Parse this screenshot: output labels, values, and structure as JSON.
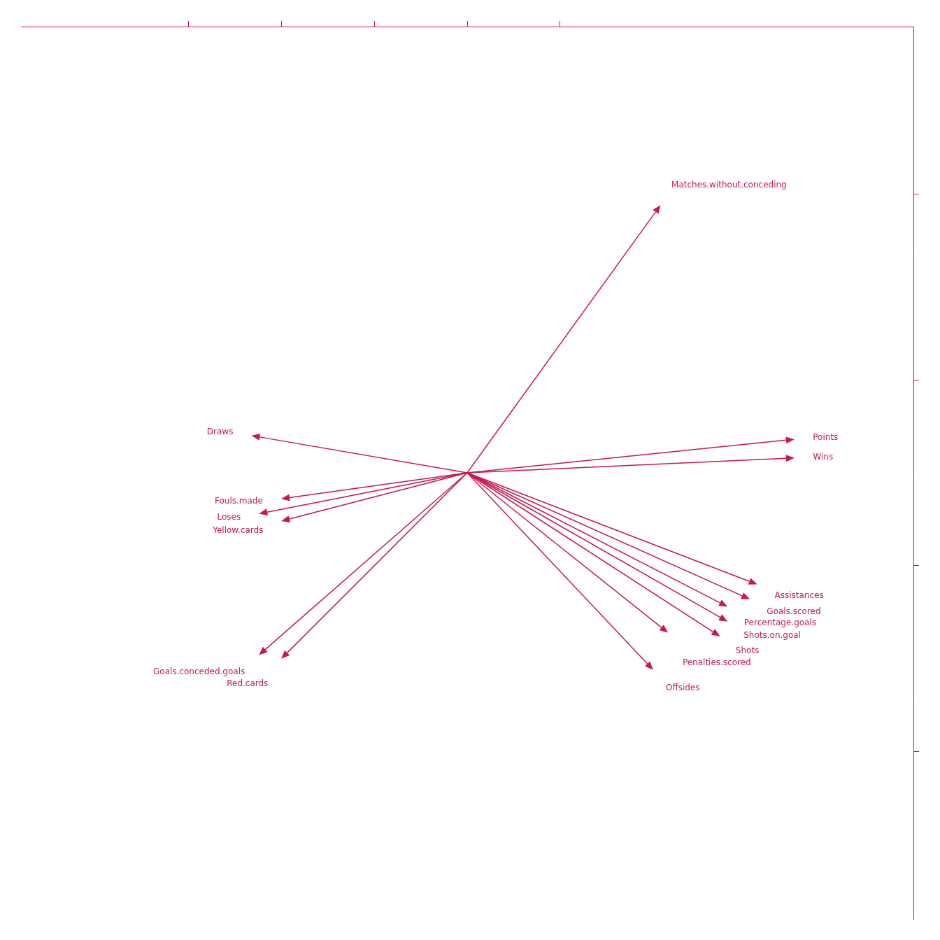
{
  "chart_data": {
    "type": "arrows",
    "categories": [
      "Matches.without.conceding",
      "Points",
      "Wins",
      "Draws",
      "Fouls.made",
      "Yellow.cards",
      "Loses",
      "Assistances",
      "Goals.scored",
      "Percentage.goals",
      "Shots.on.goal",
      "Shots",
      "Penalties.scored",
      "Offsides",
      "Goals.conceded.goals",
      "Red.cards"
    ],
    "x": [
      0.52,
      0.88,
      0.88,
      -0.58,
      -0.5,
      -0.5,
      -0.56,
      0.78,
      0.76,
      0.7,
      0.7,
      0.68,
      0.54,
      0.5,
      -0.56,
      -0.5
    ],
    "values": [
      0.72,
      0.09,
      0.04,
      0.1,
      -0.07,
      -0.13,
      -0.11,
      -0.3,
      -0.34,
      -0.36,
      -0.4,
      -0.44,
      -0.43,
      -0.53,
      -0.49,
      -0.5
    ],
    "color": "#c8184a",
    "xlim": [
      -1.2,
      1.2
    ],
    "ylim": [
      -1.2,
      1.2
    ],
    "xticks": [
      -0.75,
      -0.5,
      -0.25,
      0,
      0.25
    ],
    "yticks": [
      0.75,
      0.25,
      -0.25,
      -0.75
    ],
    "grid": false,
    "tick_labels": false
  }
}
